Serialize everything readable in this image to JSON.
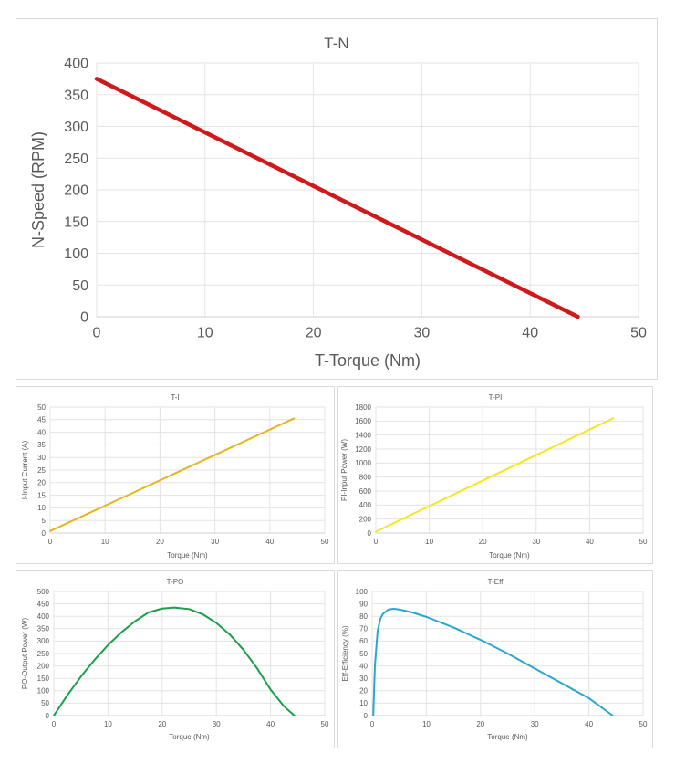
{
  "chart_data": [
    {
      "id": "tn",
      "type": "line",
      "title": "T-N",
      "xlabel": "T-Torque (Nm)",
      "ylabel": "N-Speed (RPM)",
      "xlim": [
        0,
        50
      ],
      "ylim": [
        0,
        400
      ],
      "xticks": [
        0,
        10,
        20,
        30,
        40,
        50
      ],
      "yticks": [
        0,
        50,
        100,
        150,
        200,
        250,
        300,
        350,
        400
      ],
      "grid": true,
      "color": "#d0191b",
      "series": [
        {
          "name": "N-Speed",
          "x": [
            0,
            44.4
          ],
          "y": [
            375,
            0
          ]
        }
      ]
    },
    {
      "id": "ti",
      "type": "line",
      "title": "T-I",
      "xlabel": "Torque (Nm)",
      "ylabel": "I-Input Current (A)",
      "xlim": [
        0,
        50
      ],
      "ylim": [
        0,
        50
      ],
      "xticks": [
        0,
        10,
        20,
        30,
        40,
        50
      ],
      "yticks": [
        0,
        5,
        10,
        15,
        20,
        25,
        30,
        35,
        40,
        45,
        50
      ],
      "grid": true,
      "color": "#e6b41e",
      "series": [
        {
          "name": "Input Current",
          "x": [
            0,
            44.4
          ],
          "y": [
            0.8,
            45.5
          ]
        }
      ]
    },
    {
      "id": "tpi",
      "type": "line",
      "title": "T-PI",
      "xlabel": "Torque (Nm)",
      "ylabel": "PI-Input Power (W)",
      "xlim": [
        0,
        50
      ],
      "ylim": [
        0,
        1800
      ],
      "xticks": [
        0,
        10,
        20,
        30,
        40,
        50
      ],
      "yticks": [
        0,
        200,
        400,
        600,
        800,
        1000,
        1200,
        1400,
        1600,
        1800
      ],
      "grid": true,
      "color": "#f2e822",
      "series": [
        {
          "name": "Input Power",
          "x": [
            0,
            44.4
          ],
          "y": [
            20,
            1640
          ]
        }
      ]
    },
    {
      "id": "tpo",
      "type": "line",
      "title": "T-PO",
      "xlabel": "Torque (Nm)",
      "ylabel": "PO-Output Power (W)",
      "xlim": [
        0,
        50
      ],
      "ylim": [
        0,
        500
      ],
      "xticks": [
        0,
        10,
        20,
        30,
        40,
        50
      ],
      "yticks": [
        0,
        50,
        100,
        150,
        200,
        250,
        300,
        350,
        400,
        450,
        500
      ],
      "grid": true,
      "color": "#1a9e4a",
      "series": [
        {
          "name": "Output Power",
          "x": [
            0,
            2.5,
            5,
            7.5,
            10,
            12.5,
            15,
            17.5,
            20,
            22.2,
            25,
            27.5,
            30,
            32.5,
            35,
            37.5,
            40,
            42.5,
            44.4
          ],
          "y": [
            0,
            82,
            157,
            224,
            284,
            336,
            380,
            416,
            431,
            435,
            429,
            408,
            373,
            326,
            265,
            191,
            105,
            37,
            0
          ]
        }
      ]
    },
    {
      "id": "teff",
      "type": "line",
      "title": "T-Eff",
      "xlabel": "Torque (Nm)",
      "ylabel": "Eff-Efficiency (%)",
      "xlim": [
        0,
        50
      ],
      "ylim": [
        0,
        100
      ],
      "xticks": [
        0,
        10,
        20,
        30,
        40,
        50
      ],
      "yticks": [
        0,
        10,
        20,
        30,
        40,
        50,
        60,
        70,
        80,
        90,
        100
      ],
      "grid": true,
      "color": "#2aa6cf",
      "series": [
        {
          "name": "Efficiency",
          "x": [
            0.2,
            0.5,
            1,
            1.5,
            2,
            3,
            4,
            5,
            7.5,
            10,
            15,
            20,
            25,
            30,
            35,
            40,
            44.4
          ],
          "y": [
            0,
            40,
            68,
            78,
            82,
            85.5,
            86,
            85.5,
            83,
            79.5,
            71,
            61,
            50,
            38,
            26,
            14,
            0
          ]
        }
      ]
    }
  ]
}
